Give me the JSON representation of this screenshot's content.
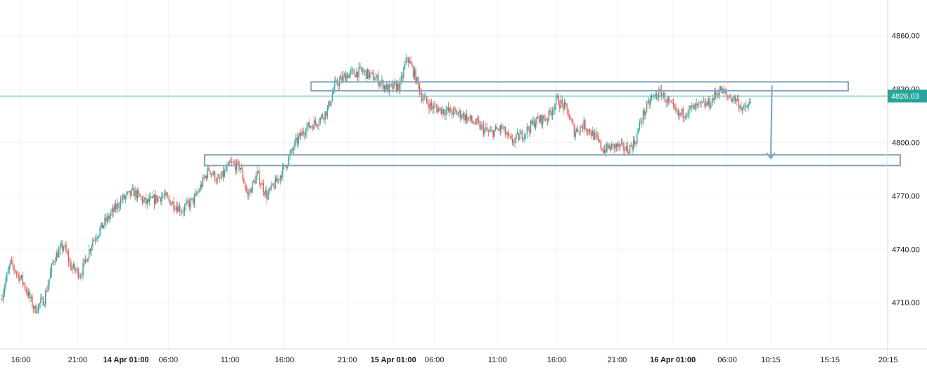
{
  "chart_data": {
    "type": "candlestick",
    "ylim": [
      4684,
      4880
    ],
    "y_ticks": [
      4710,
      4740,
      4770,
      4800,
      4830,
      4860
    ],
    "y_tick_labels": [
      "4710.00",
      "4740.00",
      "4770.00",
      "4800.00",
      "4830.00",
      "4860.00"
    ],
    "x_tick_labels": [
      "16:00",
      "21:00",
      "14 Apr 01:00",
      "06:00",
      "11:00",
      "16:00",
      "21:00",
      "15 Apr 01:00",
      "06:00",
      "11:00",
      "16:00",
      "21:00",
      "16 Apr 01:00",
      "06:00",
      "10:15",
      "15:15",
      "20:15"
    ],
    "x_tick_bold": [
      false,
      false,
      true,
      false,
      false,
      false,
      false,
      true,
      false,
      false,
      false,
      false,
      true,
      false,
      false,
      false,
      false
    ],
    "current_price": 4826.03,
    "current_price_label": "4826.03",
    "grid": true,
    "colors": {
      "up": "#26a69a",
      "down": "#ef5350",
      "price_line": "#26a69a",
      "zone": "#7fa3bd",
      "arrow": "#7fa3bd",
      "grid": "#f0f3fa",
      "axis_text": "#131722"
    },
    "zones": [
      {
        "y_low": 4829,
        "y_high": 4834,
        "x_start_bar": 256,
        "x_end_bar": 700
      },
      {
        "y_low": 4787,
        "y_high": 4793,
        "x_start_bar": 168,
        "x_end_bar": 743
      }
    ],
    "arrow": {
      "from_bar": 637,
      "from_y": 4832,
      "to_bar": 636,
      "to_y": 4791
    }
  }
}
